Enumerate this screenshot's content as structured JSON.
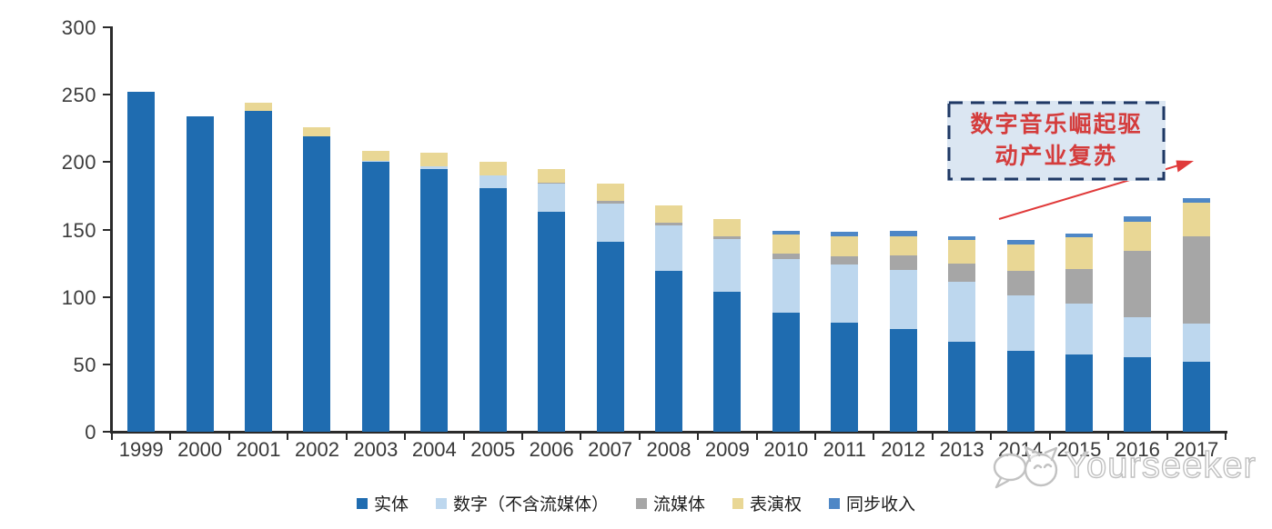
{
  "chart_data": {
    "type": "bar",
    "stacked": true,
    "title": "",
    "xlabel": "",
    "ylabel": "",
    "categories": [
      "1999",
      "2000",
      "2001",
      "2002",
      "2003",
      "2004",
      "2005",
      "2006",
      "2007",
      "2008",
      "2009",
      "2010",
      "2011",
      "2012",
      "2013",
      "2014",
      "2015",
      "2016",
      "2017"
    ],
    "series": [
      {
        "name": "实体",
        "color": "#1F6CB0",
        "values": [
          252,
          234,
          238,
          219,
          200,
          195,
          181,
          163,
          141,
          119,
          104,
          88,
          81,
          76,
          67,
          60,
          57,
          55,
          52
        ]
      },
      {
        "name": "数字（不含流媒体）",
        "color": "#BDD7EE",
        "values": [
          0,
          0,
          0,
          0,
          1,
          2,
          9,
          21,
          28,
          34,
          39,
          40,
          43,
          44,
          44,
          41,
          38,
          30,
          28
        ]
      },
      {
        "name": "流媒体",
        "color": "#A6A6A6",
        "values": [
          0,
          0,
          0,
          0,
          0,
          0,
          0,
          1,
          2,
          2,
          2,
          4,
          6,
          11,
          14,
          18,
          26,
          49,
          65
        ]
      },
      {
        "name": "表演权",
        "color": "#E9D795",
        "values": [
          0,
          0,
          6,
          7,
          7,
          10,
          10,
          10,
          13,
          13,
          13,
          14,
          15,
          14,
          17,
          20,
          23,
          22,
          25
        ]
      },
      {
        "name": "同步收入",
        "color": "#4E87C6",
        "values": [
          0,
          0,
          0,
          0,
          0,
          0,
          0,
          0,
          0,
          0,
          0,
          3,
          3,
          4,
          3,
          3,
          3,
          4,
          3
        ]
      }
    ],
    "y_axis": {
      "min": 0,
      "max": 300,
      "tick_interval": 50,
      "ticks": [
        "0",
        "50",
        "100",
        "150",
        "200",
        "250",
        "300"
      ]
    },
    "legend_position": "bottom",
    "grid": false
  },
  "annotation": {
    "lines": [
      "数字音乐崛起驱",
      "动产业复苏"
    ],
    "text_color": "#D43C3C",
    "box_fill": "#DBE6F2",
    "box_border": "#1F3864",
    "arrow_color": "#E03A3A"
  },
  "watermark": {
    "text": "Yourseeker",
    "color": "#C0C0C0"
  }
}
